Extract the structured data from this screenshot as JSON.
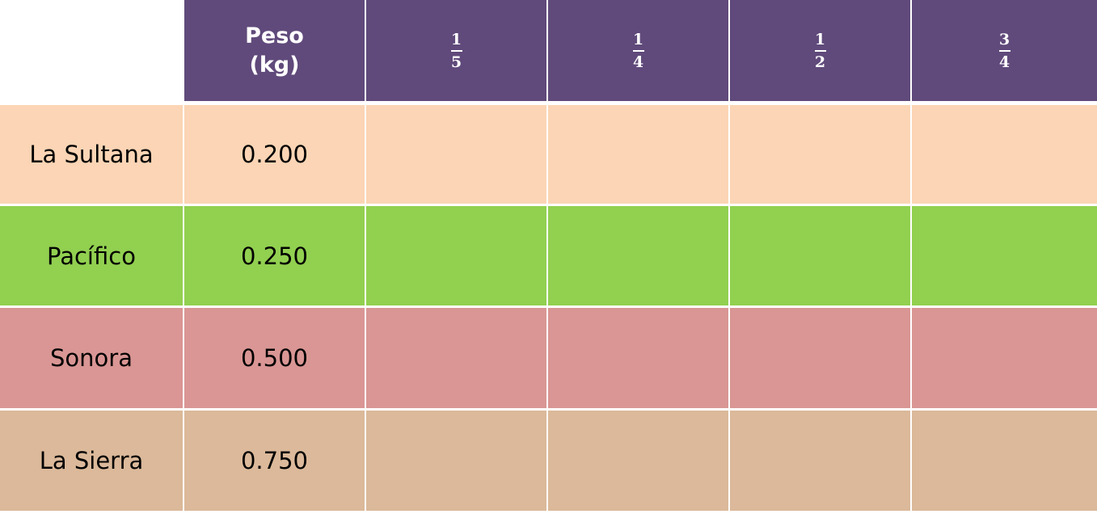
{
  "table": {
    "header_color": "#604a7b",
    "weight_label": [
      "Peso",
      "(kg)"
    ],
    "fractions": [
      {
        "numerator": "1",
        "denominator": "5"
      },
      {
        "numerator": "1",
        "denominator": "4"
      },
      {
        "numerator": "1",
        "denominator": "2"
      },
      {
        "numerator": "3",
        "denominator": "4"
      }
    ],
    "rows": [
      {
        "name": "La Sultana",
        "weight": "0.200",
        "color": "#fbd5b5"
      },
      {
        "name": "Pacífico",
        "weight": "0.250",
        "color": "#92d050"
      },
      {
        "name": "Sonora",
        "weight": "0.500",
        "color": "#d99694"
      },
      {
        "name": "La Sierra",
        "weight": "0.750",
        "color": "#dbb99a"
      }
    ]
  }
}
